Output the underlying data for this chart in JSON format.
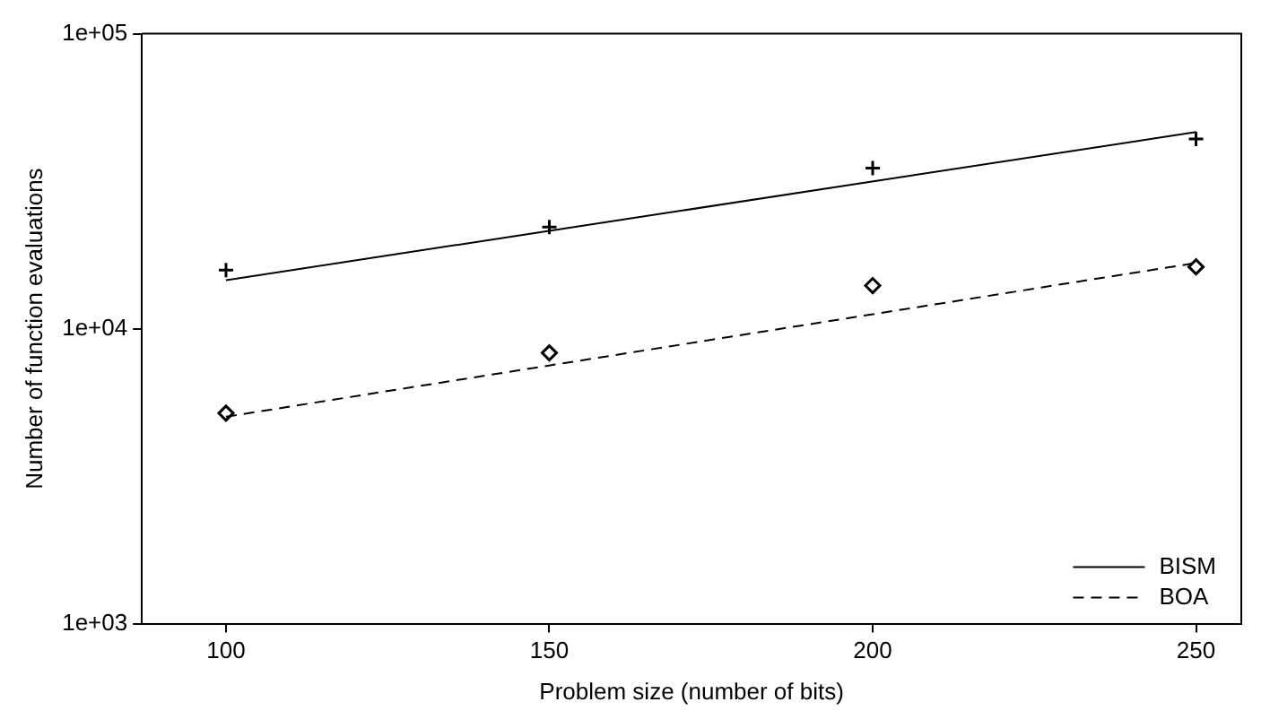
{
  "chart_data": {
    "type": "scatter",
    "xlabel": "Problem size (number of bits)",
    "ylabel": "Number of function evaluations",
    "xlim": [
      87,
      257
    ],
    "xticks": [
      100,
      150,
      200,
      250
    ],
    "ylim": [
      1000,
      100000
    ],
    "yticks": [
      {
        "value": 1000,
        "label": "1e+03"
      },
      {
        "value": 10000,
        "label": "1e+04"
      },
      {
        "value": 100000,
        "label": "1e+05"
      }
    ],
    "log": "y",
    "grid": false,
    "legend": "bottom right",
    "series": [
      {
        "type": "line",
        "name": "BISM",
        "color": "#000000",
        "line_style": "solid",
        "marker": "none",
        "x": [
          100,
          250
        ],
        "values": [
          14600,
          46400
        ]
      },
      {
        "type": "line",
        "name": "BOA",
        "color": "#000000",
        "line_style": "dashed",
        "marker": "none",
        "x": [
          100,
          250
        ],
        "values": [
          5030,
          16700
        ]
      },
      {
        "type": "scatter",
        "color": "#000000",
        "marker": "cross",
        "x": [
          100,
          150,
          200,
          250
        ],
        "values": [
          15800,
          22100,
          35000,
          44000
        ]
      },
      {
        "type": "scatter",
        "color": "#000000",
        "marker": "diamond",
        "x": [
          100,
          150,
          200,
          250
        ],
        "values": [
          5170,
          8280,
          14000,
          16200
        ]
      }
    ]
  }
}
